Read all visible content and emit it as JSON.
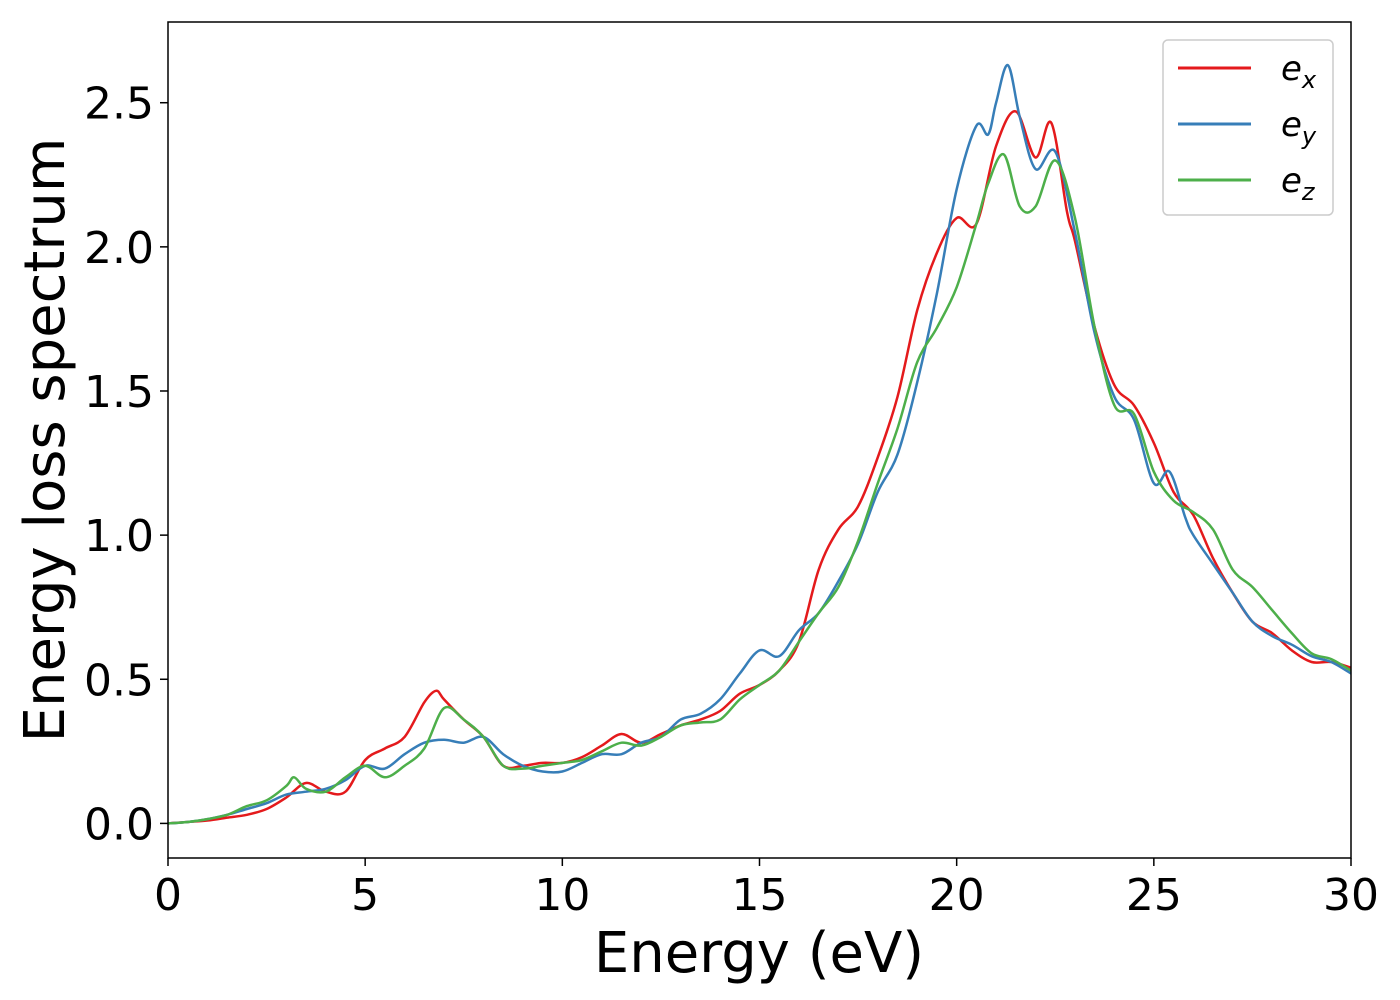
{
  "chart_data": {
    "type": "line",
    "xlabel": "Energy (eV)",
    "ylabel": "Energy loss spectrum",
    "xlim": [
      0,
      30
    ],
    "ylim": [
      -0.12,
      2.78
    ],
    "xticks": [
      0,
      5,
      10,
      15,
      20,
      25,
      30
    ],
    "xtick_labels": [
      "0",
      "5",
      "10",
      "15",
      "20",
      "25",
      "30"
    ],
    "yticks": [
      0.0,
      0.5,
      1.0,
      1.5,
      2.0,
      2.5
    ],
    "ytick_labels": [
      "0.0",
      "0.5",
      "1.0",
      "1.5",
      "2.0",
      "2.5"
    ],
    "grid": false,
    "legend_position": "top-right",
    "series": [
      {
        "name": "e_x",
        "legend_main": "e",
        "legend_sub": "x",
        "color": "#e41a1c",
        "x": [
          0,
          0.5,
          1,
          1.5,
          2,
          2.5,
          3,
          3.5,
          4,
          4.5,
          5,
          5.5,
          6,
          6.5,
          6.8,
          7,
          7.5,
          8,
          8.5,
          9,
          9.5,
          10,
          10.5,
          11,
          11.5,
          12,
          12.5,
          13,
          13.5,
          14,
          14.5,
          15,
          15.5,
          16,
          16.5,
          17,
          17.5,
          18,
          18.5,
          19,
          19.5,
          20,
          20.5,
          21,
          21.5,
          22,
          22.4,
          22.8,
          23,
          23.5,
          24,
          24.5,
          25,
          25.5,
          26,
          26.5,
          27,
          27.5,
          28,
          28.5,
          29,
          29.5,
          30
        ],
        "y": [
          0,
          0.005,
          0.01,
          0.02,
          0.03,
          0.05,
          0.09,
          0.14,
          0.11,
          0.11,
          0.22,
          0.26,
          0.3,
          0.42,
          0.46,
          0.43,
          0.36,
          0.3,
          0.2,
          0.2,
          0.21,
          0.21,
          0.23,
          0.27,
          0.31,
          0.28,
          0.31,
          0.34,
          0.36,
          0.39,
          0.45,
          0.48,
          0.53,
          0.63,
          0.88,
          1.02,
          1.1,
          1.27,
          1.48,
          1.78,
          1.98,
          2.1,
          2.08,
          2.35,
          2.47,
          2.31,
          2.43,
          2.12,
          2.02,
          1.72,
          1.52,
          1.45,
          1.32,
          1.15,
          1.07,
          0.92,
          0.8,
          0.7,
          0.66,
          0.6,
          0.56,
          0.56,
          0.54
        ]
      },
      {
        "name": "e_y",
        "legend_main": "e",
        "legend_sub": "y",
        "color": "#377eb8",
        "x": [
          0,
          0.5,
          1,
          1.5,
          2,
          2.5,
          3,
          3.5,
          4,
          4.5,
          5,
          5.5,
          6,
          6.5,
          7,
          7.5,
          8,
          8.5,
          9,
          9.5,
          10,
          10.5,
          11,
          11.5,
          12,
          12.5,
          13,
          13.5,
          14,
          14.5,
          15,
          15.5,
          16,
          16.5,
          17,
          17.5,
          18,
          18.5,
          19,
          19.5,
          20,
          20.5,
          20.8,
          21,
          21.3,
          21.6,
          22,
          22.5,
          23,
          23.5,
          24,
          24.5,
          25,
          25.4,
          25.8,
          26,
          26.5,
          27,
          27.5,
          28,
          28.5,
          29,
          29.5,
          30
        ],
        "y": [
          0,
          0.005,
          0.015,
          0.03,
          0.05,
          0.07,
          0.1,
          0.11,
          0.12,
          0.15,
          0.2,
          0.19,
          0.24,
          0.28,
          0.29,
          0.28,
          0.3,
          0.24,
          0.2,
          0.18,
          0.18,
          0.21,
          0.24,
          0.24,
          0.28,
          0.3,
          0.36,
          0.38,
          0.43,
          0.52,
          0.6,
          0.58,
          0.67,
          0.73,
          0.84,
          0.97,
          1.15,
          1.28,
          1.53,
          1.84,
          2.2,
          2.42,
          2.39,
          2.5,
          2.63,
          2.45,
          2.27,
          2.33,
          2.05,
          1.7,
          1.48,
          1.4,
          1.18,
          1.22,
          1.06,
          1.0,
          0.9,
          0.8,
          0.7,
          0.65,
          0.62,
          0.58,
          0.56,
          0.52
        ]
      },
      {
        "name": "e_z",
        "legend_main": "e",
        "legend_sub": "z",
        "color": "#4daf4a",
        "x": [
          0,
          0.5,
          1,
          1.5,
          2,
          2.5,
          3,
          3.2,
          3.5,
          4,
          4.5,
          5,
          5.5,
          6,
          6.5,
          7,
          7.5,
          8,
          8.5,
          9,
          9.5,
          10,
          10.5,
          11,
          11.5,
          12,
          12.5,
          13,
          13.5,
          14,
          14.5,
          15,
          15.5,
          16,
          16.5,
          17,
          17.5,
          18,
          18.5,
          19,
          19.5,
          20,
          20.5,
          20.8,
          21.2,
          21.6,
          22,
          22.5,
          23,
          23.5,
          24,
          24.5,
          25,
          25.5,
          26,
          26.5,
          27,
          27.5,
          28,
          28.5,
          29,
          29.5,
          30
        ],
        "y": [
          0,
          0.005,
          0.015,
          0.03,
          0.06,
          0.08,
          0.13,
          0.16,
          0.12,
          0.11,
          0.16,
          0.2,
          0.16,
          0.2,
          0.26,
          0.4,
          0.36,
          0.3,
          0.2,
          0.19,
          0.2,
          0.21,
          0.22,
          0.25,
          0.28,
          0.27,
          0.3,
          0.34,
          0.35,
          0.36,
          0.43,
          0.48,
          0.53,
          0.63,
          0.73,
          0.82,
          0.98,
          1.18,
          1.37,
          1.6,
          1.72,
          1.86,
          2.08,
          2.22,
          2.32,
          2.14,
          2.14,
          2.3,
          2.1,
          1.72,
          1.45,
          1.42,
          1.22,
          1.12,
          1.08,
          1.02,
          0.88,
          0.82,
          0.74,
          0.66,
          0.59,
          0.57,
          0.53
        ]
      }
    ]
  }
}
